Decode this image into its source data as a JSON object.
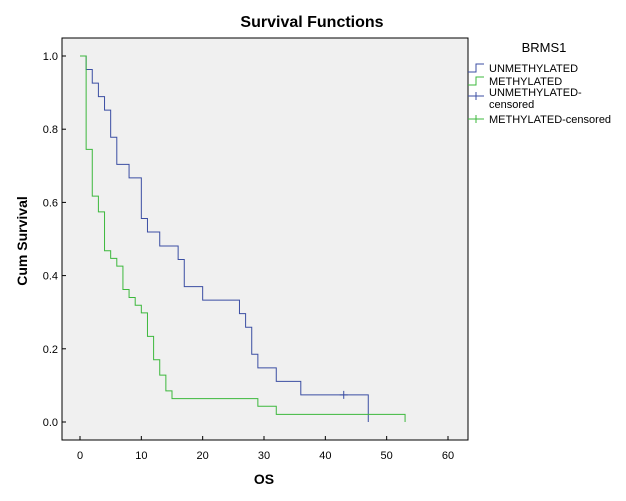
{
  "chart_data": {
    "type": "line",
    "step": "post",
    "title": "Survival Functions",
    "xlabel": "OS",
    "ylabel": "Cum Survival",
    "xlim": [
      0,
      60
    ],
    "ylim": [
      0,
      1
    ],
    "x_ticks": [
      "0",
      "10",
      "20",
      "30",
      "40",
      "50",
      "60"
    ],
    "y_ticks": [
      "0.0",
      "0.2",
      "0.4",
      "0.6",
      "0.8",
      "1.0"
    ],
    "grid": false,
    "legend": {
      "title": "BRMS1",
      "placement": "right",
      "entries": [
        {
          "label": "UNMETHYLATED",
          "color": "#3b4ea3",
          "marker": "step"
        },
        {
          "label": "METHYLATED",
          "color": "#3cb83c",
          "marker": "step"
        },
        {
          "label": "UNMETHYLATED-censored",
          "color": "#3b4ea3",
          "marker": "plus"
        },
        {
          "label": "METHYLATED-censored",
          "color": "#3cb83c",
          "marker": "plus"
        }
      ]
    },
    "series": [
      {
        "name": "UNMETHYLATED",
        "color": "#3b4ea3",
        "x": [
          0,
          1,
          2,
          3,
          4,
          5,
          6,
          8,
          10,
          11,
          13,
          16,
          17,
          20,
          26,
          27,
          28,
          29,
          32,
          36,
          47
        ],
        "y": [
          1.0,
          0.963,
          0.926,
          0.889,
          0.852,
          0.778,
          0.704,
          0.667,
          0.556,
          0.519,
          0.481,
          0.444,
          0.37,
          0.333,
          0.296,
          0.259,
          0.185,
          0.148,
          0.111,
          0.074,
          0.0
        ],
        "censored": [
          {
            "x": 43,
            "y": 0.074
          }
        ]
      },
      {
        "name": "METHYLATED",
        "color": "#3cb83c",
        "x": [
          0,
          1,
          2,
          3,
          4,
          5,
          6,
          7,
          8,
          9,
          10,
          11,
          12,
          13,
          14,
          15,
          29,
          32,
          53
        ],
        "y": [
          1.0,
          0.745,
          0.617,
          0.574,
          0.468,
          0.447,
          0.426,
          0.362,
          0.34,
          0.319,
          0.298,
          0.234,
          0.17,
          0.128,
          0.085,
          0.064,
          0.043,
          0.021,
          0.0
        ],
        "censored": []
      }
    ]
  }
}
